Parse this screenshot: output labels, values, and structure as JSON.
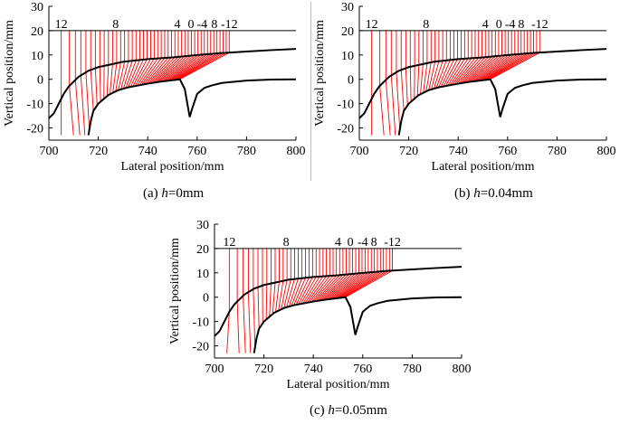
{
  "chart_data": [
    {
      "type": "line",
      "caption": {
        "prefix": "(a) ",
        "var": "h",
        "value": "=0mm"
      },
      "xlabel": "Lateral position/mm",
      "ylabel": "Vertical position/mm",
      "xlim": [
        700,
        800
      ],
      "ylim": [
        -25,
        30
      ],
      "xticks": [
        700,
        720,
        740,
        760,
        780,
        800
      ],
      "yticks": [
        -20,
        -10,
        0,
        10,
        20,
        30
      ],
      "reference_line_y": 20,
      "annotations": [
        {
          "text": "12",
          "x": 705
        },
        {
          "text": "8",
          "x": 727
        },
        {
          "text": "4",
          "x": 752
        },
        {
          "text": "0",
          "x": 757.5
        },
        {
          "text": "-4",
          "x": 762
        },
        {
          "text": "8",
          "x": 767
        },
        {
          "text": "-12",
          "x": 773
        }
      ],
      "series": [
        {
          "role": "wheel-profile",
          "color": "#000000",
          "points": [
            [
              700,
              -16
            ],
            [
              702,
              -14
            ],
            [
              704,
              -10
            ],
            [
              706,
              -6
            ],
            [
              708,
              -3
            ],
            [
              712,
              1
            ],
            [
              716,
              3.5
            ],
            [
              720,
              5
            ],
            [
              730,
              7.2
            ],
            [
              740,
              8.3
            ],
            [
              750,
              9
            ],
            [
              760,
              10
            ],
            [
              770,
              10.8
            ],
            [
              780,
              11.4
            ],
            [
              790,
              12
            ],
            [
              800,
              12.5
            ]
          ]
        },
        {
          "role": "rail-profile",
          "color": "#000000",
          "points": [
            [
              716,
              -23
            ],
            [
              717,
              -17
            ],
            [
              718,
              -13
            ],
            [
              720,
              -10
            ],
            [
              724,
              -6.5
            ],
            [
              728,
              -4.5
            ],
            [
              732,
              -3.3
            ],
            [
              740,
              -1.8
            ],
            [
              745,
              -1
            ],
            [
              750,
              -0.4
            ],
            [
              753,
              0
            ],
            [
              755,
              -4
            ],
            [
              757,
              -15.5
            ],
            [
              758,
              -12
            ],
            [
              760,
              -6
            ],
            [
              763,
              -3.5
            ],
            [
              766,
              -2.5
            ],
            [
              770,
              -1.5
            ],
            [
              780,
              -0.5
            ],
            [
              790,
              -0.1
            ],
            [
              800,
              0
            ]
          ]
        },
        {
          "role": "contact-lines",
          "color": "#ff0000",
          "count": 45
        }
      ]
    },
    {
      "type": "line",
      "caption": {
        "prefix": "(b) ",
        "var": "h",
        "value": "=0.04mm"
      },
      "xlabel": "Lateral position/mm",
      "ylabel": "Vertical position/mm",
      "xlim": [
        700,
        800
      ],
      "ylim": [
        -25,
        30
      ],
      "xticks": [
        700,
        720,
        740,
        760,
        780,
        800
      ],
      "yticks": [
        -20,
        -10,
        0,
        10,
        20,
        30
      ],
      "reference_line_y": 20,
      "annotations": [
        {
          "text": "12",
          "x": 705
        },
        {
          "text": "8",
          "x": 727
        },
        {
          "text": "4",
          "x": 751
        },
        {
          "text": "0",
          "x": 756.5
        },
        {
          "text": "-4",
          "x": 761
        },
        {
          "text": "8",
          "x": 765.5
        },
        {
          "text": "-12",
          "x": 773
        }
      ],
      "series": [
        {
          "role": "wheel-profile",
          "color": "#000000",
          "points": [
            [
              700,
              -16
            ],
            [
              702,
              -14
            ],
            [
              704,
              -10
            ],
            [
              706,
              -6
            ],
            [
              708,
              -3
            ],
            [
              712,
              1
            ],
            [
              716,
              3.5
            ],
            [
              720,
              5
            ],
            [
              730,
              7.2
            ],
            [
              740,
              8.3
            ],
            [
              750,
              9
            ],
            [
              760,
              10
            ],
            [
              770,
              10.8
            ],
            [
              780,
              11.4
            ],
            [
              790,
              12
            ],
            [
              800,
              12.5
            ]
          ]
        },
        {
          "role": "rail-profile",
          "color": "#000000",
          "points": [
            [
              716,
              -23
            ],
            [
              717,
              -17
            ],
            [
              718,
              -13
            ],
            [
              720,
              -10
            ],
            [
              724,
              -6.5
            ],
            [
              728,
              -4.5
            ],
            [
              732,
              -3.3
            ],
            [
              740,
              -1.8
            ],
            [
              745,
              -1
            ],
            [
              750,
              -0.4
            ],
            [
              753,
              0
            ],
            [
              755,
              -4
            ],
            [
              757,
              -15.5
            ],
            [
              758,
              -12
            ],
            [
              760,
              -6
            ],
            [
              763,
              -3.5
            ],
            [
              766,
              -2.5
            ],
            [
              770,
              -1.5
            ],
            [
              780,
              -0.5
            ],
            [
              790,
              -0.1
            ],
            [
              800,
              0
            ]
          ]
        },
        {
          "role": "contact-lines",
          "color": "#ff0000",
          "count": 45
        }
      ]
    },
    {
      "type": "line",
      "caption": {
        "prefix": "(c) ",
        "var": "h",
        "value": "=0.05mm"
      },
      "xlabel": "Lateral position/mm",
      "ylabel": "Vertical position/mm",
      "xlim": [
        700,
        800
      ],
      "ylim": [
        -25,
        30
      ],
      "xticks": [
        700,
        720,
        740,
        760,
        780,
        800
      ],
      "yticks": [
        -20,
        -10,
        0,
        10,
        20,
        30
      ],
      "reference_line_y": 20,
      "annotations": [
        {
          "text": "12",
          "x": 706
        },
        {
          "text": "8",
          "x": 729
        },
        {
          "text": "4",
          "x": 750
        },
        {
          "text": "0",
          "x": 755
        },
        {
          "text": "-4",
          "x": 760
        },
        {
          "text": "8",
          "x": 764.5
        },
        {
          "text": "-12",
          "x": 772
        }
      ],
      "series": [
        {
          "role": "wheel-profile",
          "color": "#000000",
          "points": [
            [
              700,
              -16
            ],
            [
              702,
              -14
            ],
            [
              704,
              -10
            ],
            [
              706,
              -6
            ],
            [
              708,
              -3
            ],
            [
              712,
              1
            ],
            [
              716,
              3.5
            ],
            [
              720,
              5
            ],
            [
              730,
              7.2
            ],
            [
              740,
              8.3
            ],
            [
              750,
              9
            ],
            [
              760,
              10
            ],
            [
              770,
              10.8
            ],
            [
              780,
              11.4
            ],
            [
              790,
              12
            ],
            [
              800,
              12.5
            ]
          ]
        },
        {
          "role": "rail-profile",
          "color": "#000000",
          "points": [
            [
              716,
              -23
            ],
            [
              717,
              -17
            ],
            [
              718,
              -13
            ],
            [
              720,
              -10
            ],
            [
              724,
              -6.5
            ],
            [
              728,
              -4.5
            ],
            [
              732,
              -3.3
            ],
            [
              740,
              -1.8
            ],
            [
              745,
              -1
            ],
            [
              750,
              -0.4
            ],
            [
              753,
              0
            ],
            [
              755,
              -4
            ],
            [
              757,
              -15.5
            ],
            [
              758,
              -12
            ],
            [
              760,
              -6
            ],
            [
              763,
              -3.5
            ],
            [
              766,
              -2.5
            ],
            [
              770,
              -1.5
            ],
            [
              780,
              -0.5
            ],
            [
              790,
              -0.1
            ],
            [
              800,
              0
            ]
          ]
        },
        {
          "role": "contact-lines",
          "color": "#ff0000",
          "count": 45
        }
      ]
    }
  ]
}
